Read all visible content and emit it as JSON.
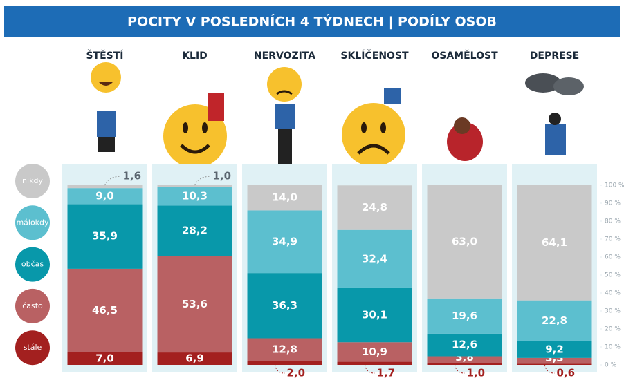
{
  "chart_data": {
    "type": "stacked-bar",
    "title": "POCITY V POSLEDNÍCH 4 TÝDNECH | PODÍLY OSOB",
    "categories": [
      "ŠTĚSTÍ",
      "KLID",
      "NERVOZITA",
      "SKLÍČENOST",
      "OSAMĚLOST",
      "DEPRESE"
    ],
    "series": [
      {
        "name": "stále",
        "color": "#a3201f",
        "values": [
          7.0,
          6.9,
          2.0,
          1.7,
          1.0,
          0.6
        ],
        "value_labels": [
          "7,0",
          "6,9",
          "2,0",
          "1,7",
          "1,0",
          "0,6"
        ]
      },
      {
        "name": "často",
        "color": "#b96163",
        "values": [
          46.5,
          53.6,
          12.8,
          10.9,
          3.8,
          3.3
        ],
        "value_labels": [
          "46,5",
          "53,6",
          "12,8",
          "10,9",
          "3,8",
          "3,3"
        ]
      },
      {
        "name": "občas",
        "color": "#0898aa",
        "values": [
          35.9,
          28.2,
          36.3,
          30.1,
          12.6,
          9.2
        ],
        "value_labels": [
          "35,9",
          "28,2",
          "36,3",
          "30,1",
          "12,6",
          "9,2"
        ]
      },
      {
        "name": "málokdy",
        "color": "#5cbfcf",
        "values": [
          9.0,
          10.3,
          34.9,
          32.4,
          19.6,
          22.8
        ],
        "value_labels": [
          "9,0",
          "10,3",
          "34,9",
          "32,4",
          "19,6",
          "22,8"
        ]
      },
      {
        "name": "nikdy",
        "color": "#c9c9c9",
        "values": [
          1.6,
          1.0,
          14.0,
          24.8,
          63.0,
          64.1
        ],
        "value_labels": [
          "1,6",
          "1,0",
          "14,0",
          "24,8",
          "63,0",
          "64,1"
        ]
      }
    ],
    "ylim": [
      0,
      100
    ],
    "yticks": [
      {
        "value": 0,
        "label": "0 %"
      },
      {
        "value": 10,
        "label": "10 %"
      },
      {
        "value": 20,
        "label": "20 %"
      },
      {
        "value": 30,
        "label": "30 %"
      },
      {
        "value": 40,
        "label": "40 %"
      },
      {
        "value": 50,
        "label": "50 %"
      },
      {
        "value": 60,
        "label": "60 %"
      },
      {
        "value": 70,
        "label": "70 %"
      },
      {
        "value": 80,
        "label": "80 %"
      },
      {
        "value": 90,
        "label": "90 %"
      },
      {
        "value": 100,
        "label": "100 %"
      }
    ]
  }
}
